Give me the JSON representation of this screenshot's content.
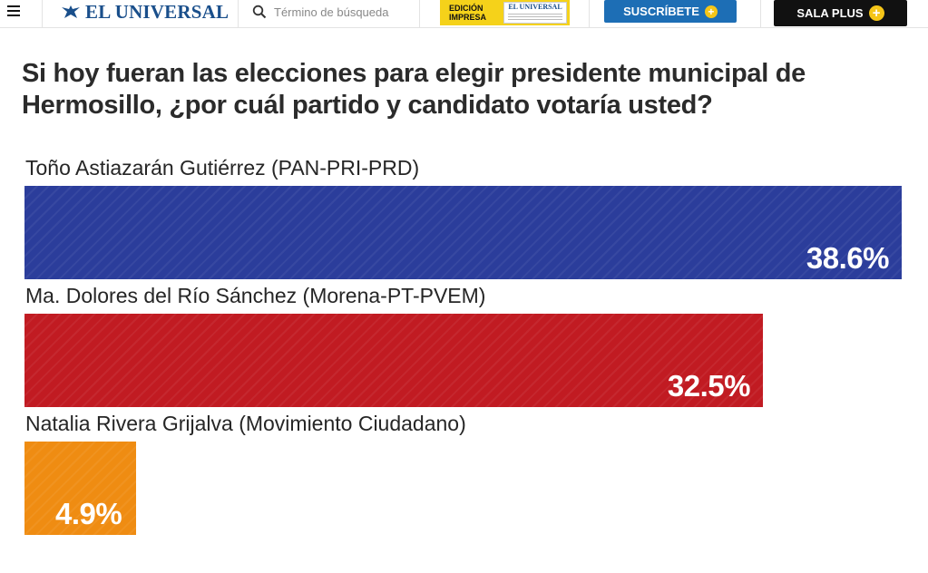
{
  "header": {
    "logo_text": "EL UNIVERSAL",
    "search_placeholder": "Término de búsqueda",
    "edicion_label_1": "EDICIÓN",
    "edicion_label_2": "IMPRESA",
    "edicion_thumb_title": "EL UNIVERSAL",
    "suscribete_label": "SUSCRÍBETE",
    "sala_label": "SALA PLUS",
    "colors": {
      "logo": "#1a4f8b",
      "suscribete_bg": "#1d6eb5",
      "sala_bg": "#111111",
      "edicion_bg": "#f5d21a",
      "plus_icon": "#f5c518"
    },
    "icons": [
      "hamburger-icon",
      "eagle-logo-icon",
      "search-icon",
      "plus-icon"
    ]
  },
  "chart_data": {
    "type": "bar",
    "orientation": "horizontal",
    "title": "Si hoy fueran las elecciones para elegir presidente municipal de Hermosillo, ¿por cuál partido y candidato votaría usted?",
    "categories": [
      "Toño Astiazarán Gutiérrez (PAN-PRI-PRD)",
      "Ma. Dolores del Río Sánchez (Morena-PT-PVEM)",
      "Natalia Rivera Grijalva (Movimiento Ciudadano)"
    ],
    "values": [
      38.6,
      32.5,
      4.9
    ],
    "value_labels": [
      "38.6%",
      "32.5%",
      "4.9%"
    ],
    "colors": [
      "#2b3d9b",
      "#c11b22",
      "#ef8c12"
    ],
    "xlim": [
      0,
      38.6
    ],
    "grid": false,
    "legend": "none"
  }
}
